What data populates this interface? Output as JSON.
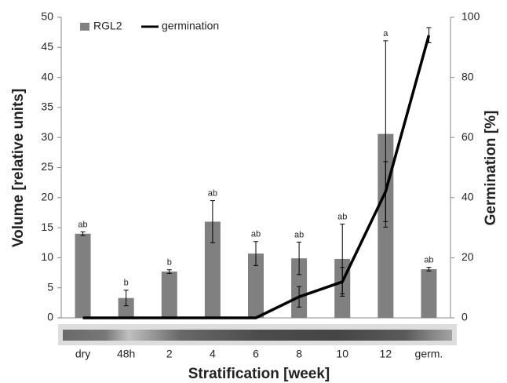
{
  "chart_data": {
    "type": "bar-line",
    "x_label": "Stratification [week]",
    "y_label": "Volume [relative units]",
    "y2_label": "Germination [%]",
    "categories": [
      "dry",
      "48h",
      "2",
      "4",
      "6",
      "8",
      "10",
      "12",
      "germ."
    ],
    "series": [
      {
        "name": "RGL2",
        "type": "bar",
        "color": "#808080",
        "values": [
          14,
          3.3,
          7.7,
          16,
          10.7,
          9.9,
          9.8,
          30.6,
          8.1
        ],
        "errors": [
          0.3,
          1.3,
          0.3,
          3.5,
          2,
          2.7,
          5.8,
          15.5,
          0.3
        ],
        "annotations": [
          "ab",
          "b",
          "b",
          "ab",
          "ab",
          "ab",
          "ab",
          "a",
          "ab"
        ]
      },
      {
        "name": "germination",
        "type": "line",
        "axis": "y2",
        "color": "#000000",
        "values": [
          0,
          0,
          0,
          0,
          0,
          7,
          12,
          42,
          94
        ],
        "errors": [
          null,
          null,
          null,
          null,
          null,
          3.4,
          4.8,
          10,
          2.5
        ]
      }
    ],
    "ylim": [
      0,
      50
    ],
    "yticks": [
      0,
      5,
      10,
      15,
      20,
      25,
      30,
      35,
      40,
      45,
      50
    ],
    "y2lim": [
      0,
      100
    ],
    "y2ticks": [
      0,
      20,
      40,
      60,
      80,
      100
    ],
    "legend": "top-left",
    "grid": false
  }
}
